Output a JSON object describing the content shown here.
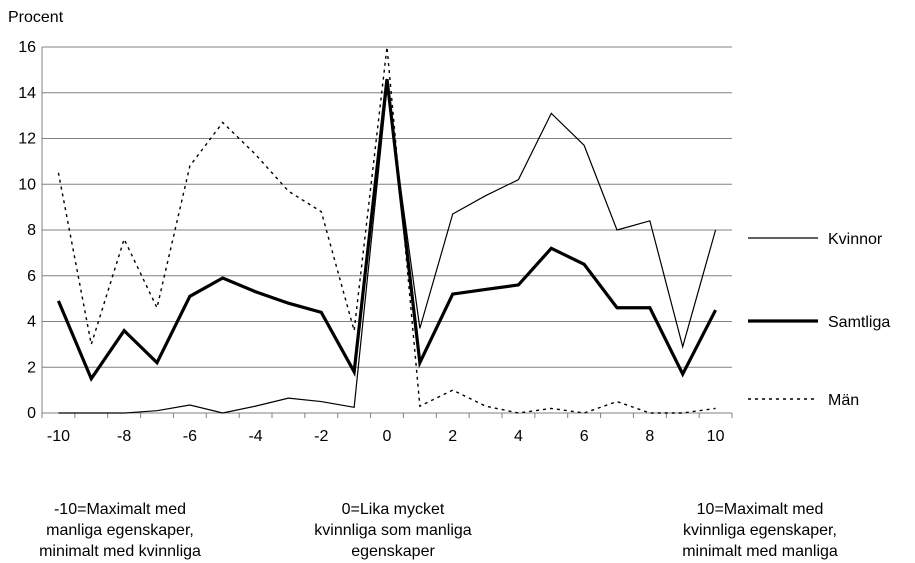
{
  "chart_data": {
    "type": "line",
    "ylabel": "Procent",
    "xlabel": "",
    "x": [
      -10,
      -9,
      -8,
      -7,
      -6,
      -5,
      -4,
      -3,
      -2,
      -1,
      0,
      1,
      2,
      3,
      4,
      5,
      6,
      7,
      8,
      9,
      10
    ],
    "xlim": [
      -10,
      10
    ],
    "ylim": [
      0,
      16
    ],
    "xticks": [
      -10,
      -8,
      -6,
      -4,
      -2,
      0,
      2,
      4,
      6,
      8,
      10
    ],
    "yticks": [
      0,
      2,
      4,
      6,
      8,
      10,
      12,
      14,
      16
    ],
    "grid": "horizontal",
    "legend_position": "right",
    "series": [
      {
        "name": "Kvinnor",
        "style": "thin",
        "values": [
          0,
          0,
          0,
          0.1,
          0.35,
          0,
          0.3,
          0.65,
          0.5,
          0.25,
          14.2,
          3.7,
          8.7,
          9.5,
          10.2,
          13.1,
          11.7,
          8.0,
          8.4,
          2.9,
          8.0
        ]
      },
      {
        "name": "Samtliga",
        "style": "thick",
        "values": [
          4.9,
          1.5,
          3.6,
          2.2,
          5.1,
          5.9,
          5.3,
          4.8,
          4.4,
          1.8,
          14.6,
          2.2,
          5.2,
          5.4,
          5.6,
          7.2,
          6.5,
          4.6,
          4.6,
          1.7,
          4.5
        ]
      },
      {
        "name": "Män",
        "style": "dashed",
        "values": [
          10.5,
          3.0,
          7.6,
          4.6,
          10.8,
          12.7,
          11.3,
          9.7,
          8.8,
          3.6,
          16.0,
          0.3,
          1.0,
          0.3,
          0.0,
          0.2,
          0.0,
          0.5,
          0.0,
          0.0,
          0.2
        ]
      }
    ]
  },
  "notes": {
    "left": [
      "-10=Maximalt med",
      "manliga egenskaper,",
      "minimalt med kvinnliga"
    ],
    "center": [
      "0=Lika mycket",
      "kvinnliga som manliga",
      "egenskaper"
    ],
    "right": [
      "10=Maximalt med",
      "kvinnliga egenskaper,",
      "minimalt med manliga"
    ]
  }
}
